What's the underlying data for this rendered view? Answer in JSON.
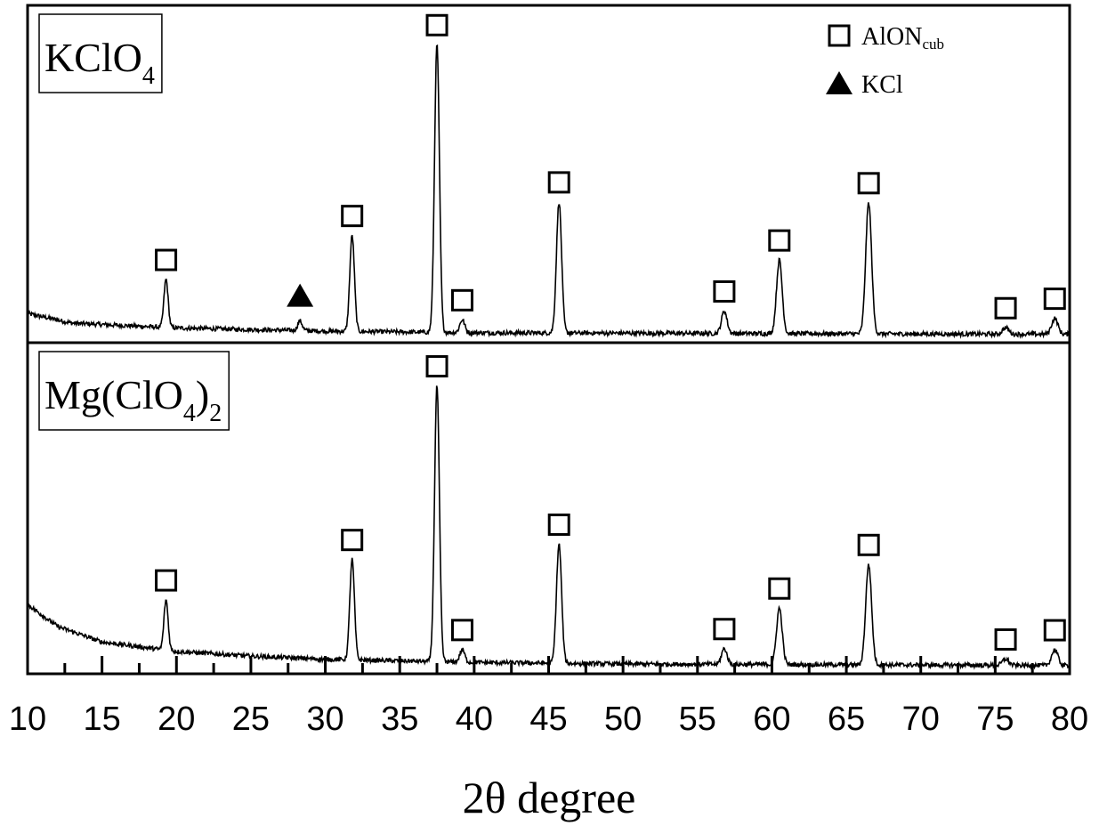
{
  "chart_data": {
    "type": "line",
    "title": "",
    "xlabel": "2θ degree",
    "ylabel": "",
    "xlim": [
      10,
      80
    ],
    "xticks": [
      "10",
      "15",
      "20",
      "25",
      "30",
      "35",
      "40",
      "45",
      "50",
      "55",
      "60",
      "65",
      "70",
      "75",
      "80"
    ],
    "grid": false,
    "legend": {
      "placement": "top-right",
      "entries": [
        {
          "marker": "square-open",
          "label": "AlON",
          "subscript": "cub"
        },
        {
          "marker": "triangle-filled",
          "label": "KCl"
        }
      ]
    },
    "panels": [
      {
        "sample_label": {
          "parts": [
            [
              "KClO",
              "n"
            ],
            [
              "4",
              "sub"
            ]
          ]
        },
        "baseline": [
          [
            10,
            0.08
          ],
          [
            13,
            0.05
          ],
          [
            20,
            0.035
          ],
          [
            30,
            0.025
          ],
          [
            40,
            0.02
          ],
          [
            80,
            0.015
          ]
        ],
        "peaks": [
          {
            "x": 19.3,
            "height": 0.15,
            "marker": "square-open"
          },
          {
            "x": 28.3,
            "height": 0.03,
            "marker": "triangle-filled"
          },
          {
            "x": 31.8,
            "height": 0.3,
            "marker": "square-open"
          },
          {
            "x": 37.5,
            "height": 0.9,
            "marker": "square-open"
          },
          {
            "x": 39.2,
            "height": 0.04,
            "marker": "square-open"
          },
          {
            "x": 45.7,
            "height": 0.41,
            "marker": "square-open"
          },
          {
            "x": 56.8,
            "height": 0.07,
            "marker": "square-open"
          },
          {
            "x": 60.5,
            "height": 0.23,
            "marker": "square-open"
          },
          {
            "x": 66.5,
            "height": 0.41,
            "marker": "square-open"
          },
          {
            "x": 75.7,
            "height": 0.02,
            "marker": "square-open"
          },
          {
            "x": 79.0,
            "height": 0.05,
            "marker": "square-open"
          }
        ]
      },
      {
        "sample_label": {
          "parts": [
            [
              "Mg(ClO",
              "n"
            ],
            [
              "4",
              "sub"
            ],
            [
              ")",
              "n"
            ],
            [
              "2",
              "sub"
            ]
          ]
        },
        "baseline": [
          [
            10,
            0.21
          ],
          [
            12,
            0.14
          ],
          [
            15,
            0.09
          ],
          [
            20,
            0.06
          ],
          [
            25,
            0.045
          ],
          [
            30,
            0.035
          ],
          [
            40,
            0.025
          ],
          [
            50,
            0.02
          ],
          [
            80,
            0.015
          ]
        ],
        "peaks": [
          {
            "x": 19.3,
            "height": 0.16,
            "marker": "square-open"
          },
          {
            "x": 31.8,
            "height": 0.32,
            "marker": "square-open"
          },
          {
            "x": 37.5,
            "height": 0.88,
            "marker": "square-open"
          },
          {
            "x": 39.2,
            "height": 0.04,
            "marker": "square-open"
          },
          {
            "x": 45.7,
            "height": 0.38,
            "marker": "square-open"
          },
          {
            "x": 56.8,
            "height": 0.05,
            "marker": "square-open"
          },
          {
            "x": 60.5,
            "height": 0.18,
            "marker": "square-open"
          },
          {
            "x": 66.5,
            "height": 0.32,
            "marker": "square-open"
          },
          {
            "x": 75.7,
            "height": 0.02,
            "marker": "square-open"
          },
          {
            "x": 79.0,
            "height": 0.05,
            "marker": "square-open"
          }
        ]
      }
    ]
  }
}
